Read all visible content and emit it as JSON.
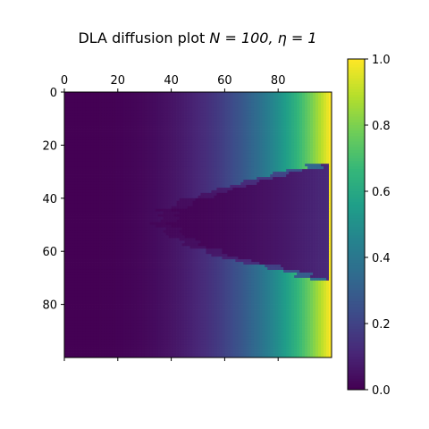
{
  "chart_data": {
    "type": "heatmap",
    "title_text": "DLA diffusion plot ",
    "title_math": "N = 100, η = 1",
    "grid_size": 100,
    "xlim": [
      0,
      100
    ],
    "ylim": [
      100,
      0
    ],
    "x_ticks": [
      0,
      20,
      40,
      60,
      80
    ],
    "y_ticks": [
      0,
      20,
      40,
      60,
      80
    ],
    "x_tick_position": "top",
    "y_axis_inverted": true,
    "colormap": "viridis",
    "colorbar": {
      "min": 0.0,
      "max": 1.0,
      "ticks": [
        "0.0",
        "0.2",
        "0.4",
        "0.6",
        "0.8",
        "1.0"
      ],
      "position": "right"
    },
    "grid": false,
    "cluster": {
      "description_free_values": true,
      "seed_x": 99,
      "seed_y": 43,
      "tip_x": 40,
      "y_min": 27,
      "y_max": 70
    },
    "value_low": 0.0,
    "value_high": 1.0
  }
}
